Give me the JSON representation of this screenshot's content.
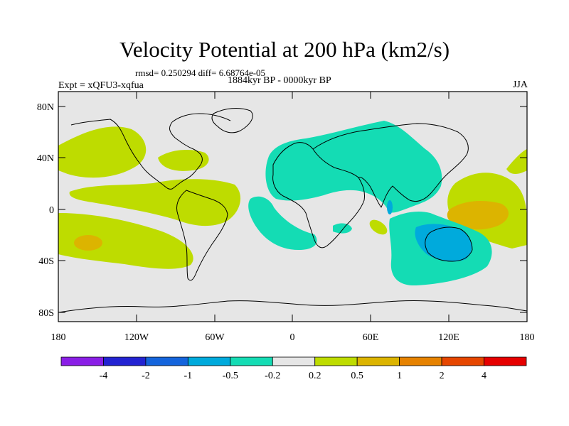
{
  "header": {
    "title": "Velocity Potential at 200 hPa (km2/s)",
    "stats": "rmsd= 0.250294 diff= 6.68764e-05",
    "experiment": "Expt = xQFU3-xqfua",
    "period": "1884kyr BP - 0000kyr BP",
    "season": "JJA"
  },
  "axes": {
    "lat_labels": [
      "80N",
      "40N",
      "0",
      "40S",
      "80S"
    ],
    "lon_labels": [
      "180",
      "120W",
      "60W",
      "0",
      "60E",
      "120E",
      "180"
    ]
  },
  "colorbar": {
    "colors": [
      "#8a1ee6",
      "#2323d2",
      "#1464dc",
      "#00aadc",
      "#14dcb4",
      "#e6e6e6",
      "#bedc00",
      "#dcb400",
      "#e68200",
      "#e64600",
      "#e60000"
    ],
    "labels": [
      "-4",
      "-2",
      "-1",
      "-0.5",
      "-0.2",
      "0.2",
      "0.5",
      "1",
      "2",
      "4"
    ]
  },
  "palette": {
    "background": "#e6e6e6",
    "positive_weak": "#bedc00",
    "positive_mid": "#dcb400",
    "negative_weak": "#14dcb4",
    "negative_mid": "#00aadc",
    "negative_strong": "#1464dc"
  }
}
